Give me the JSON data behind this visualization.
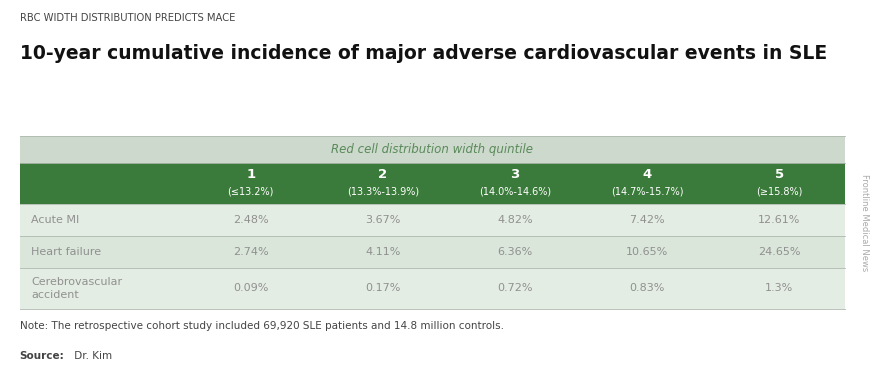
{
  "supertitle": "RBC WIDTH DISTRIBUTION PREDICTS MACE",
  "title": "10-year cumulative incidence of major adverse cardiovascular events in SLE",
  "header_super": "Red cell distribution width quintile",
  "col_headers": [
    {
      "num": "1",
      "range": "(≤13.2%)"
    },
    {
      "num": "2",
      "range": "(13.3%-13.9%)"
    },
    {
      "num": "3",
      "range": "(14.0%-14.6%)"
    },
    {
      "num": "4",
      "range": "(14.7%-15.7%)"
    },
    {
      "num": "5",
      "range": "(≥15.8%)"
    }
  ],
  "row_labels": [
    "Acute MI",
    "Heart failure",
    "Cerebrovascular\naccident"
  ],
  "data": [
    [
      "2.48%",
      "3.67%",
      "4.82%",
      "7.42%",
      "12.61%"
    ],
    [
      "2.74%",
      "4.11%",
      "6.36%",
      "10.65%",
      "24.65%"
    ],
    [
      "0.09%",
      "0.17%",
      "0.72%",
      "0.83%",
      "1.3%"
    ]
  ],
  "note": "Note: The retrospective cohort study included 69,920 SLE patients and 14.8 million controls.",
  "source_bold": "Source:",
  "source_plain": " Dr. Kim",
  "watermark": "Frontline Medical News",
  "bg_color": "#ffffff",
  "table_header_super_bg": "#ccd9cc",
  "table_header_super_text": "#5a8a5a",
  "table_header_bg": "#3a7a3a",
  "table_header_text": "#ffffff",
  "table_row_bg": [
    "#e4ede4",
    "#dae6da",
    "#e4ede4"
  ],
  "table_row_text": "#909090",
  "table_label_text": "#909090",
  "border_color": "#b0b8b0",
  "supertitle_color": "#444444",
  "title_color": "#111111",
  "note_color": "#444444"
}
